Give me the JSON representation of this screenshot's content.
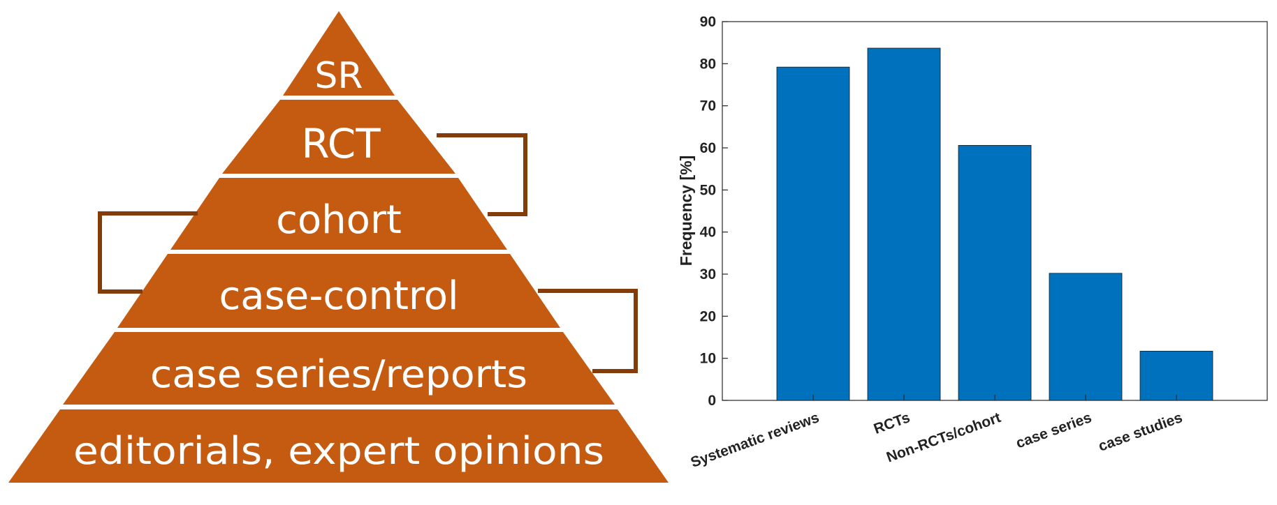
{
  "pyramid": {
    "fill_color": "#c55a11",
    "arrow_color": "#843c0b",
    "levels": [
      "SR",
      "RCT",
      "cohort",
      "case-control",
      "case series/reports",
      "editorials, expert opinions"
    ]
  },
  "chart_data": {
    "type": "bar",
    "categories": [
      "Systematic reviews",
      "RCTs",
      "Non-RCTs/cohort",
      "case series",
      "case studies"
    ],
    "values": [
      79.2,
      83.7,
      60.6,
      30.2,
      11.7
    ],
    "title": "",
    "xlabel": "",
    "ylabel": "Frequency [%]",
    "ylim": [
      0,
      90
    ],
    "yticks": [
      0,
      10,
      20,
      30,
      40,
      50,
      60,
      70,
      80,
      90
    ],
    "xlim": [
      0,
      6
    ],
    "bar_color": "#0072bd",
    "grid": false
  }
}
